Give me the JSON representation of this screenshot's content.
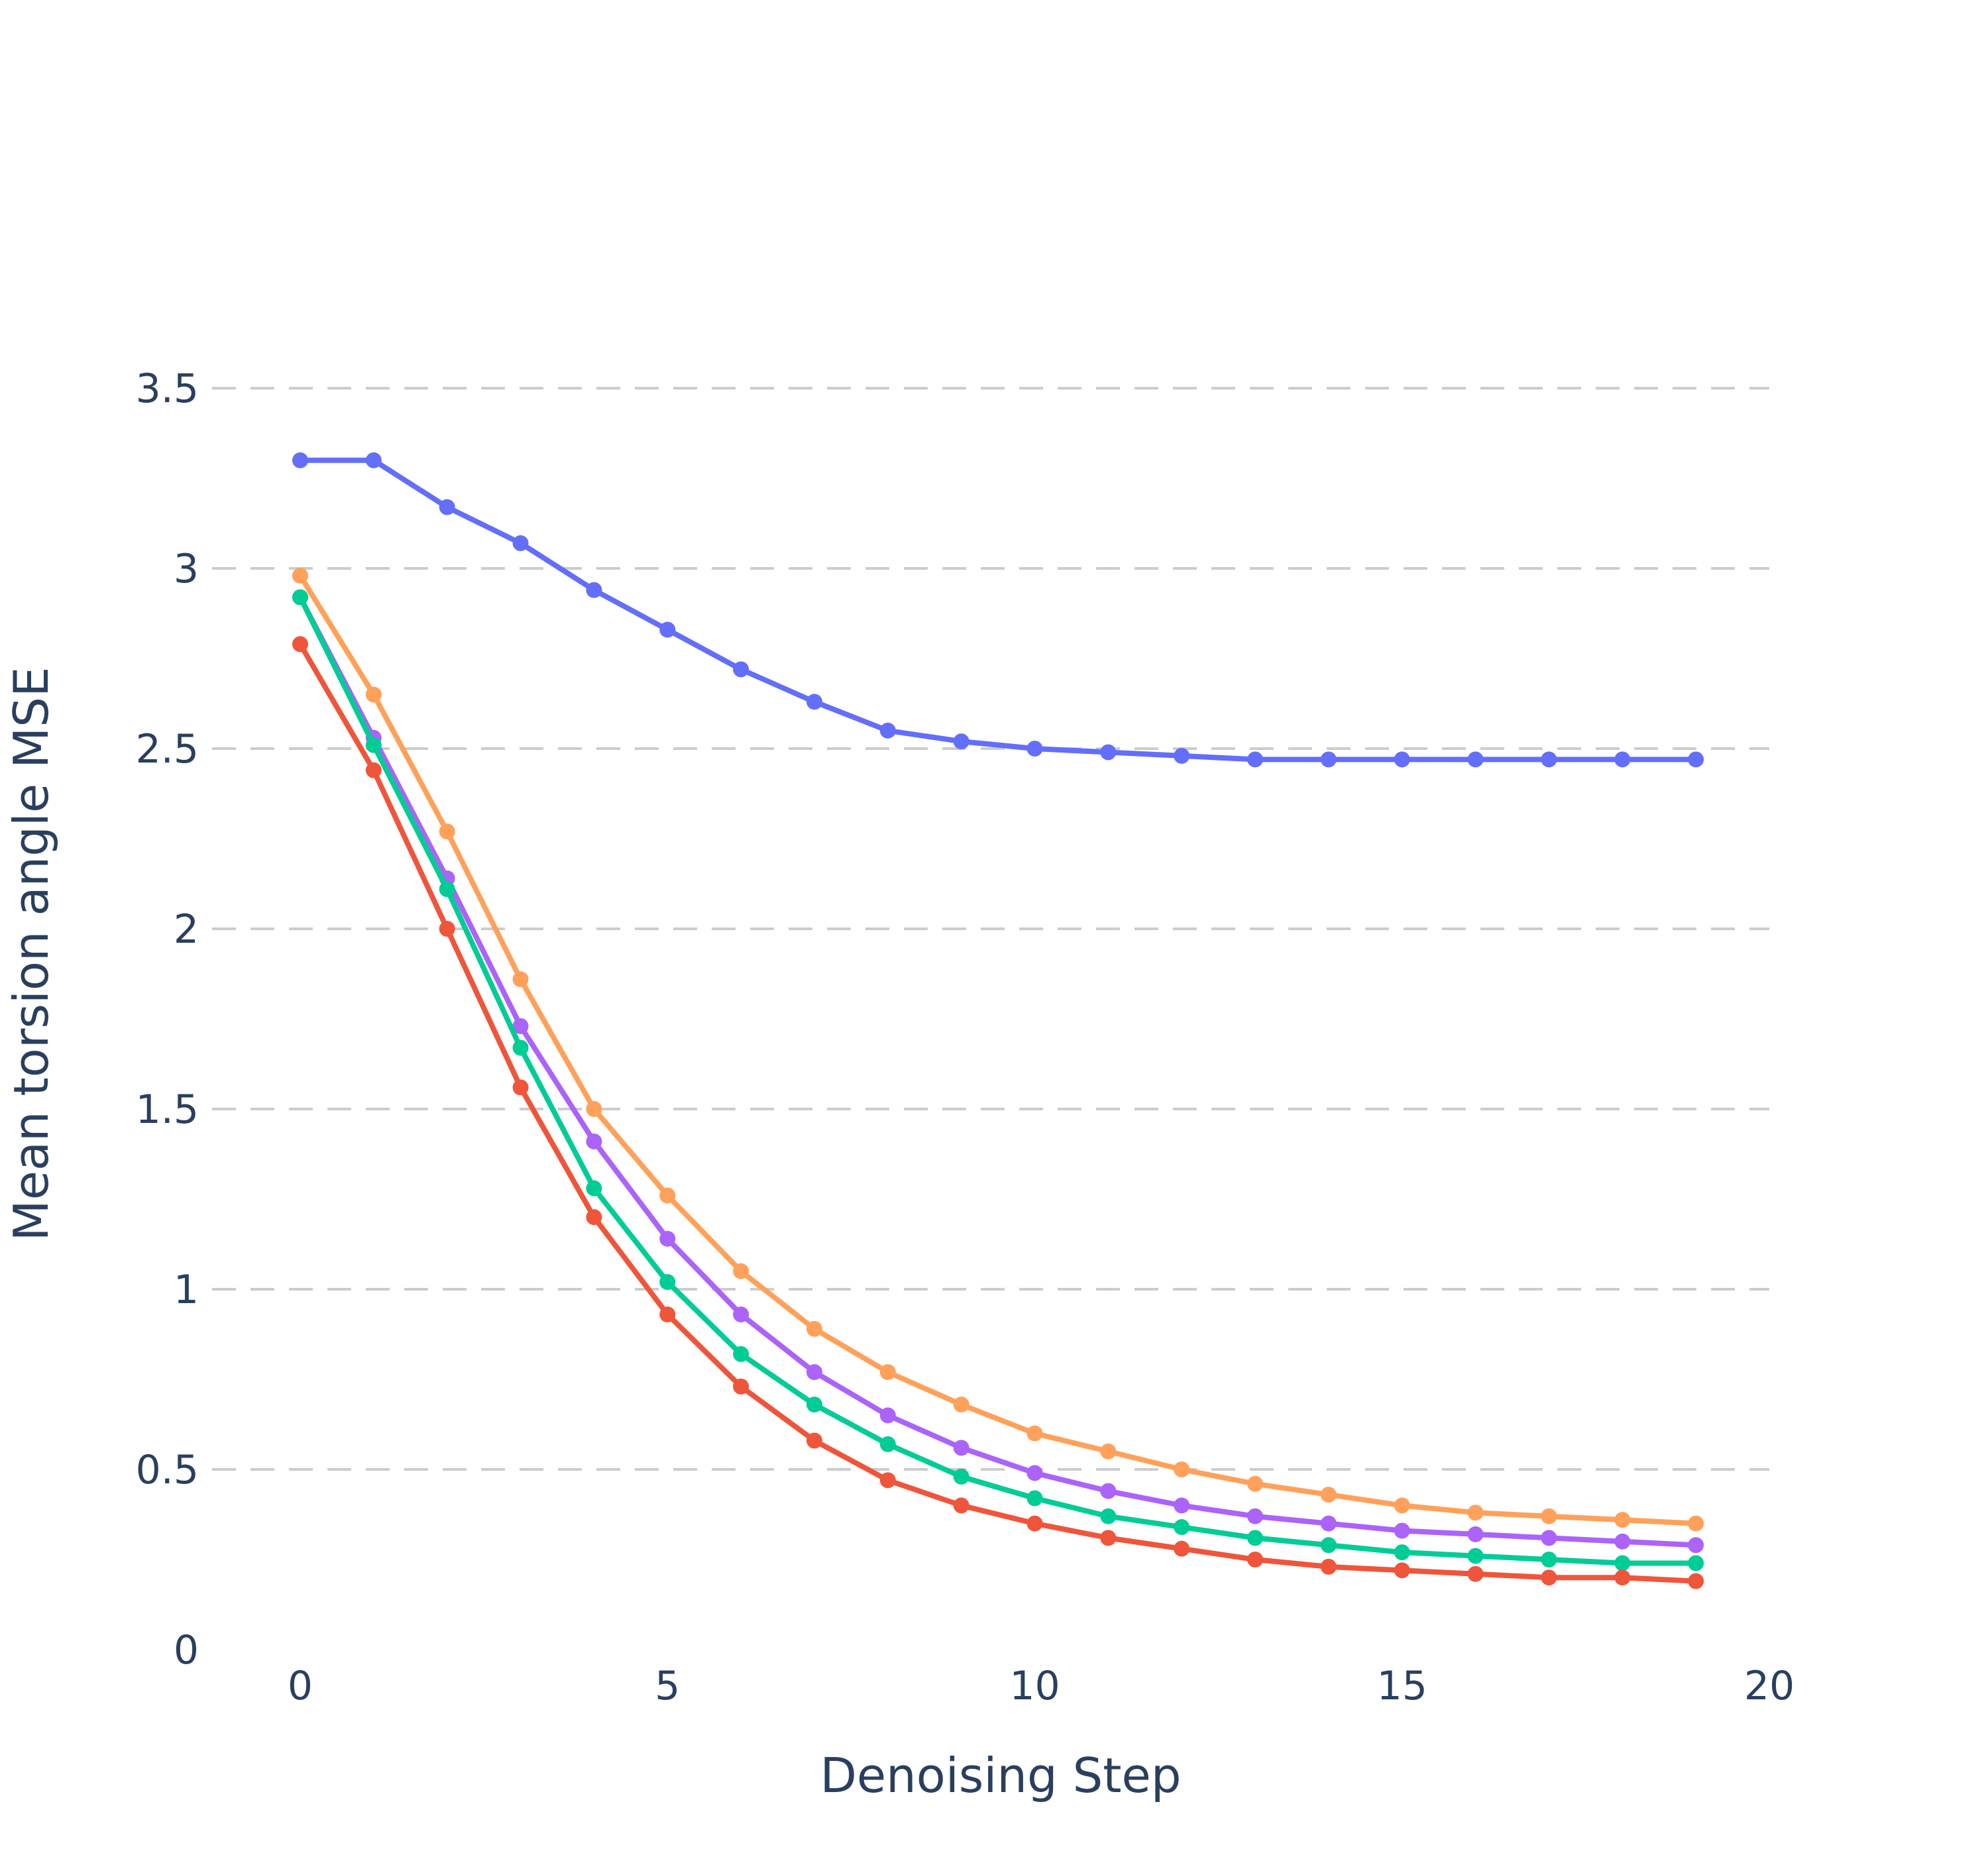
{
  "chart_data": {
    "type": "line",
    "title": "",
    "xlabel": "Denoising Step",
    "ylabel": "Mean torsion angle MSE",
    "xlim": [
      -1.2,
      20
    ],
    "ylim": [
      0,
      3.75
    ],
    "x_ticks": [
      0,
      5,
      10,
      15,
      20
    ],
    "y_ticks": [
      0,
      0.5,
      1,
      1.5,
      2,
      2.5,
      3,
      3.5
    ],
    "x_tick_labels": [
      "0",
      "5",
      "10",
      "15",
      "20"
    ],
    "y_tick_labels": [
      "0",
      "0.5",
      "1",
      "1.5",
      "2",
      "2.5",
      "3",
      "3.5"
    ],
    "grid": true,
    "legend": "none",
    "x": [
      0,
      1,
      2,
      3,
      4,
      5,
      6,
      7,
      8,
      9,
      10,
      11,
      12,
      13,
      14,
      15,
      16,
      17,
      18,
      19
    ],
    "series": [
      {
        "color": "#636efa",
        "values": [
          3.3,
          3.3,
          3.17,
          3.07,
          2.94,
          2.83,
          2.72,
          2.63,
          2.55,
          2.52,
          2.5,
          2.49,
          2.48,
          2.47,
          2.47,
          2.47,
          2.47,
          2.47,
          2.47,
          2.47
        ]
      },
      {
        "color": "#ffa15a",
        "values": [
          2.98,
          2.65,
          2.27,
          1.86,
          1.5,
          1.26,
          1.05,
          0.89,
          0.77,
          0.68,
          0.6,
          0.55,
          0.5,
          0.46,
          0.43,
          0.4,
          0.38,
          0.37,
          0.36,
          0.35
        ]
      },
      {
        "color": "#ab63fa",
        "values": [
          2.92,
          2.53,
          2.14,
          1.73,
          1.41,
          1.14,
          0.93,
          0.77,
          0.65,
          0.56,
          0.49,
          0.44,
          0.4,
          0.37,
          0.35,
          0.33,
          0.32,
          0.31,
          0.3,
          0.29
        ]
      },
      {
        "color": "#00cc96",
        "values": [
          2.92,
          2.51,
          2.11,
          1.67,
          1.28,
          1.02,
          0.82,
          0.68,
          0.57,
          0.48,
          0.42,
          0.37,
          0.34,
          0.31,
          0.29,
          0.27,
          0.26,
          0.25,
          0.24,
          0.24
        ]
      },
      {
        "color": "#ef553b",
        "values": [
          2.79,
          2.44,
          2.0,
          1.56,
          1.2,
          0.93,
          0.73,
          0.58,
          0.47,
          0.4,
          0.35,
          0.31,
          0.28,
          0.25,
          0.23,
          0.22,
          0.21,
          0.2,
          0.2,
          0.19
        ]
      }
    ]
  }
}
